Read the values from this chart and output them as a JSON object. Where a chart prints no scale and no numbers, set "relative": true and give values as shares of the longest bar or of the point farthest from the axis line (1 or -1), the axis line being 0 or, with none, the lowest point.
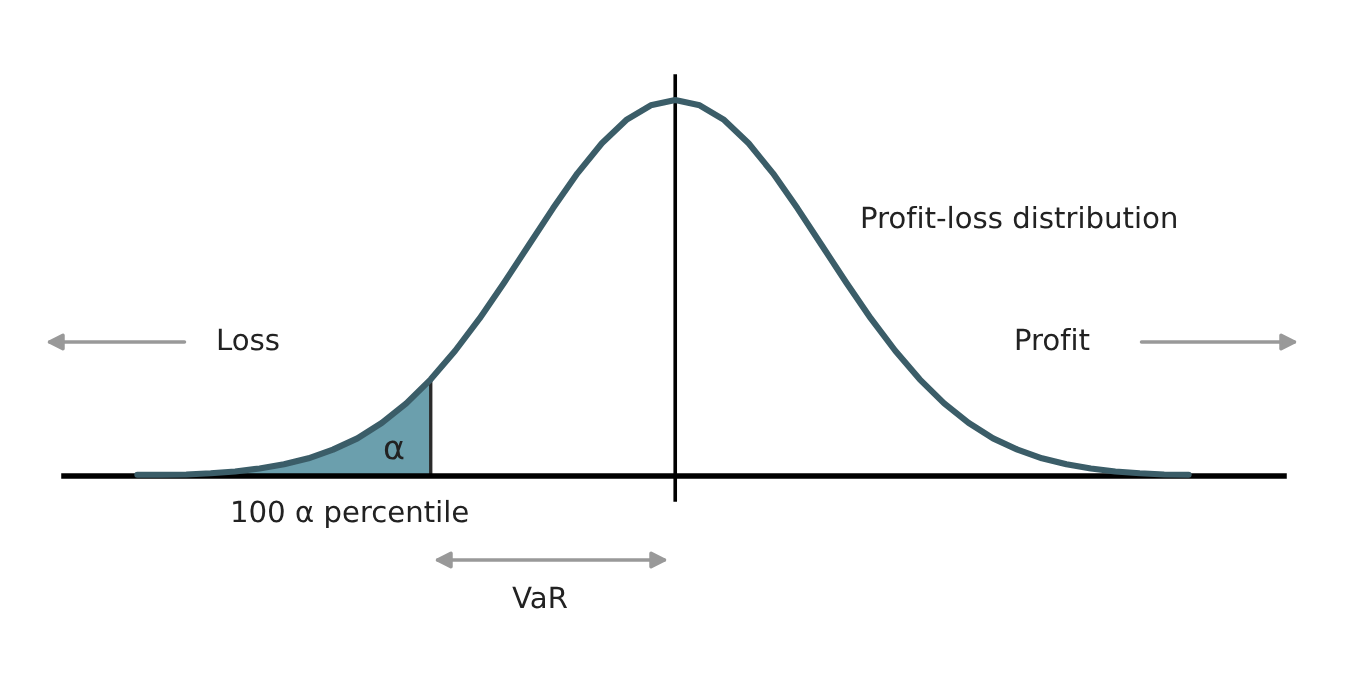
{
  "chart_data": {
    "type": "line",
    "relative": true,
    "categories": [
      null,
      null,
      null,
      null,
      null,
      null,
      null,
      null,
      null,
      null,
      null,
      null,
      null,
      null,
      null,
      null,
      null,
      null,
      null,
      null,
      null,
      null,
      null,
      null,
      null,
      null,
      null,
      null,
      null,
      null,
      null,
      null,
      null,
      null,
      null,
      null,
      null,
      null,
      null,
      null,
      null,
      null,
      null,
      null
    ],
    "series": [
      {
        "type": "area",
        "color": "#6b9fad",
        "values": [
          0.003,
          0.003,
          0.004,
          0.007,
          0.012,
          0.02,
          0.031,
          0.047,
          0.07,
          0.1,
          0.141,
          0.193,
          0.257,
          null,
          null,
          null,
          null,
          null,
          null,
          null,
          null,
          null,
          null,
          null,
          null,
          null,
          null,
          null,
          null,
          null,
          null,
          null,
          null,
          null,
          null,
          null,
          null,
          null,
          null,
          null,
          null,
          null,
          null,
          null
        ]
      },
      {
        "color": "#3b5d68",
        "values": [
          0.003,
          0.003,
          0.004,
          0.007,
          0.012,
          0.02,
          0.031,
          0.047,
          0.07,
          0.1,
          0.141,
          0.193,
          0.257,
          0.333,
          0.419,
          0.514,
          0.613,
          0.712,
          0.805,
          0.885,
          0.947,
          0.986,
          1.0,
          0.986,
          0.947,
          0.885,
          0.805,
          0.712,
          0.613,
          0.514,
          0.419,
          0.333,
          0.257,
          0.193,
          0.141,
          0.1,
          0.07,
          0.047,
          0.031,
          0.02,
          0.012,
          0.007,
          0.004,
          0.003
        ]
      }
    ],
    "annotations": [
      "Loss",
      "Profit",
      "Profit-loss distribution",
      "α",
      "100 α percentile",
      "VaR"
    ]
  }
}
